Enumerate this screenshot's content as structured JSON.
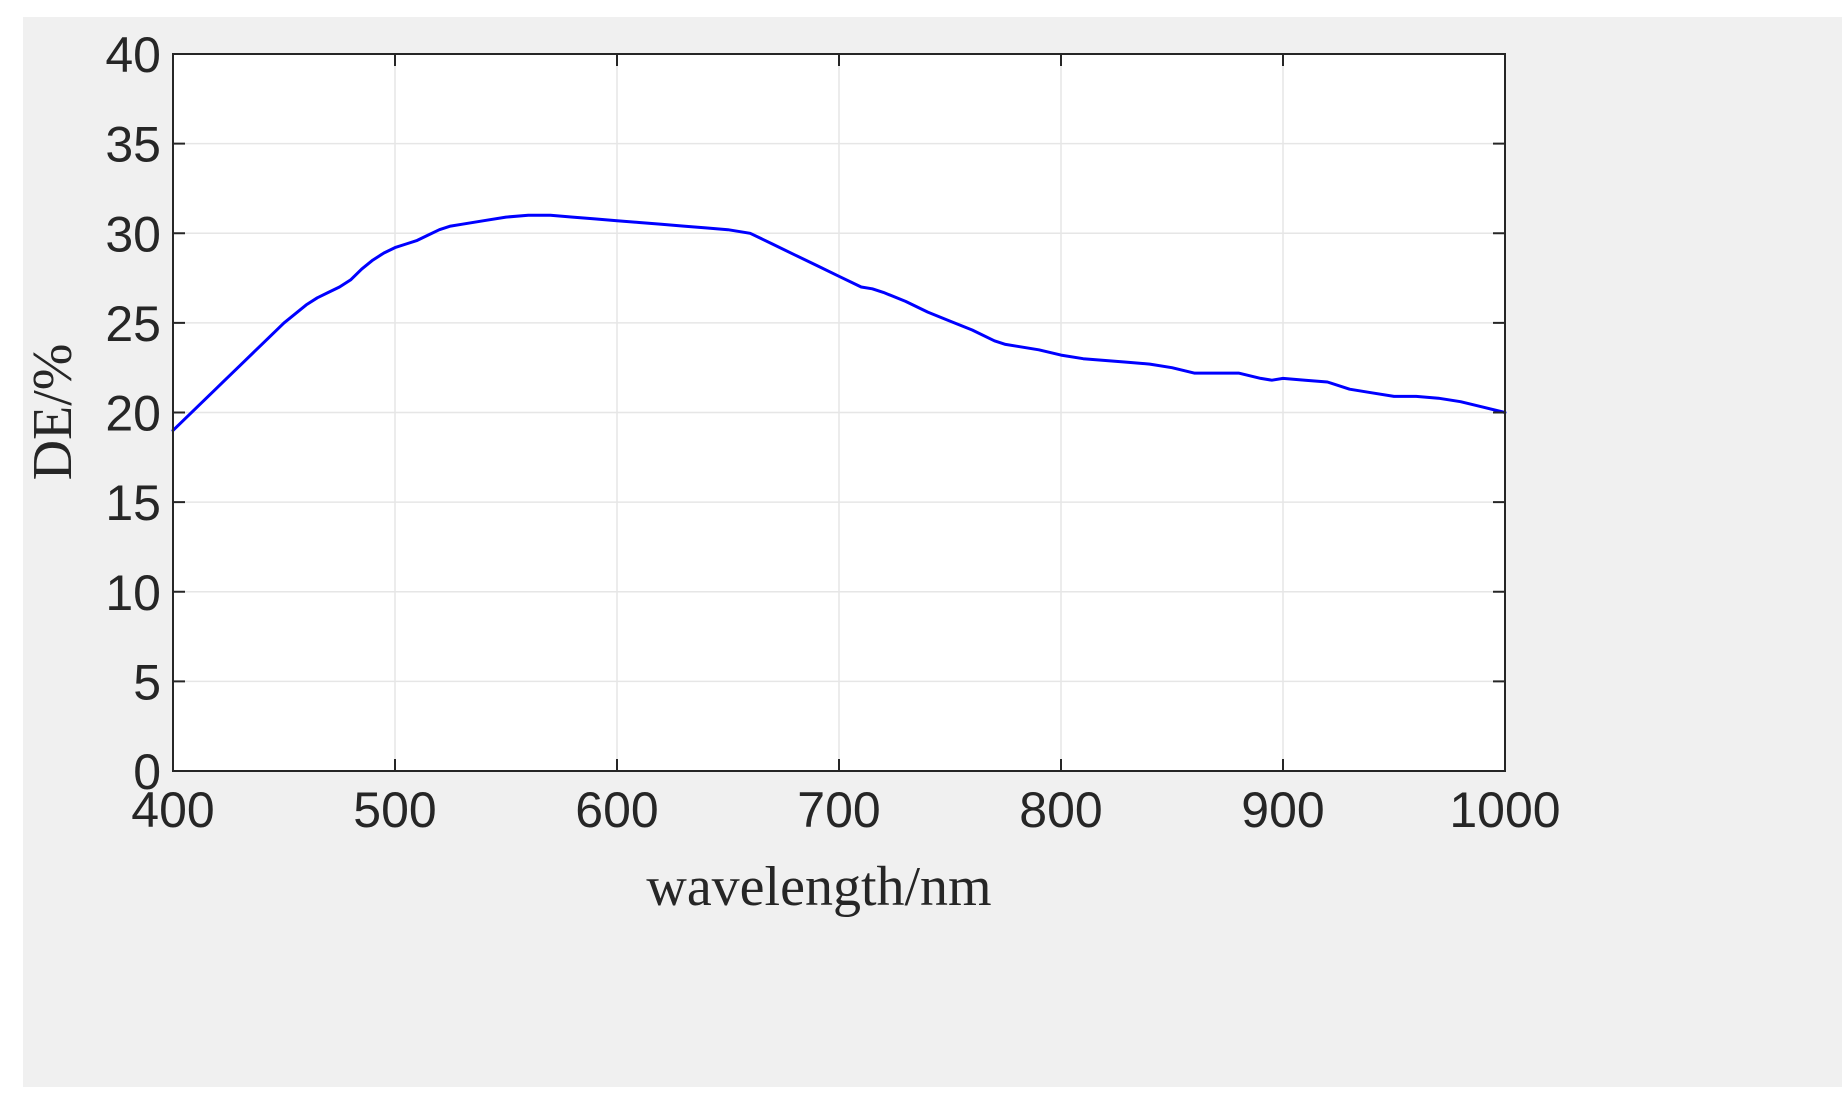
{
  "chart_data": {
    "type": "line",
    "title": "",
    "xlabel": "wavelength/nm",
    "ylabel": "DE/%",
    "xlim": [
      400,
      1000
    ],
    "ylim": [
      0,
      40
    ],
    "xticks": [
      400,
      500,
      600,
      700,
      800,
      900,
      1000
    ],
    "yticks": [
      0,
      5,
      10,
      15,
      20,
      25,
      30,
      35,
      40
    ],
    "grid": true,
    "legend": "none",
    "colors": {
      "line": "#0000ff",
      "background": "#f0f0f0",
      "plot_area": "#ffffff",
      "grid": "#e6e6e6",
      "axes": "#262626"
    },
    "series": [
      {
        "x": [
          400,
          410,
          420,
          430,
          440,
          450,
          455,
          460,
          465,
          470,
          475,
          480,
          485,
          490,
          495,
          500,
          505,
          510,
          515,
          520,
          525,
          530,
          540,
          550,
          560,
          565,
          570,
          580,
          590,
          600,
          610,
          620,
          630,
          640,
          650,
          660,
          670,
          680,
          690,
          700,
          710,
          715,
          720,
          730,
          740,
          750,
          760,
          770,
          775,
          780,
          790,
          800,
          810,
          820,
          830,
          840,
          850,
          860,
          870,
          880,
          890,
          895,
          900,
          910,
          920,
          930,
          940,
          950,
          960,
          970,
          980,
          990,
          1000
        ],
        "y": [
          19.0,
          20.2,
          21.4,
          22.6,
          23.8,
          25.0,
          25.5,
          26.0,
          26.4,
          26.7,
          27.0,
          27.4,
          28.0,
          28.5,
          28.9,
          29.2,
          29.4,
          29.6,
          29.9,
          30.2,
          30.4,
          30.5,
          30.7,
          30.9,
          31.0,
          31.0,
          31.0,
          30.9,
          30.8,
          30.7,
          30.6,
          30.5,
          30.4,
          30.3,
          30.2,
          30.0,
          29.4,
          28.8,
          28.2,
          27.6,
          27.0,
          26.9,
          26.7,
          26.2,
          25.6,
          25.1,
          24.6,
          24.0,
          23.8,
          23.7,
          23.5,
          23.2,
          23.0,
          22.9,
          22.8,
          22.7,
          22.5,
          22.2,
          22.2,
          22.2,
          21.9,
          21.8,
          21.9,
          21.8,
          21.7,
          21.3,
          21.1,
          20.9,
          20.9,
          20.8,
          20.6,
          20.3,
          20.0
        ]
      }
    ]
  }
}
